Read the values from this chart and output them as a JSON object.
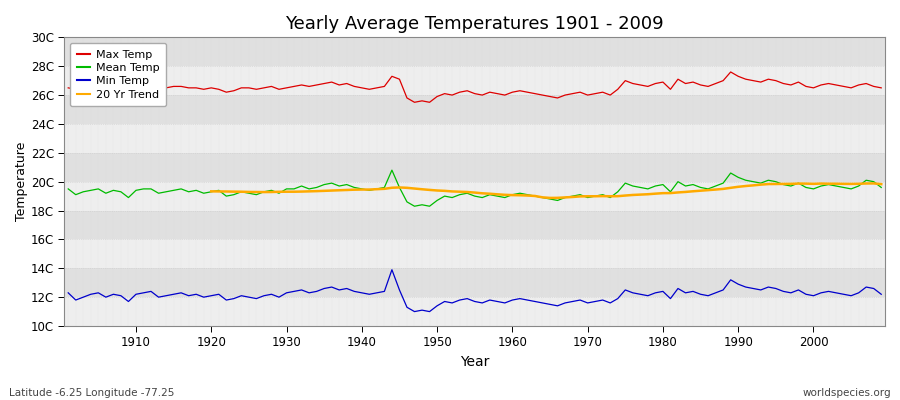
{
  "title": "Yearly Average Temperatures 1901 - 2009",
  "xlabel": "Year",
  "ylabel": "Temperature",
  "lat_lon_label": "Latitude -6.25 Longitude -77.25",
  "source_label": "worldspecies.org",
  "fig_bg_color": "#ffffff",
  "plot_bg_color": "#e8e8e8",
  "band_color_light": "#eeeeee",
  "band_color_dark": "#e0e0e0",
  "grid_color": "#cccccc",
  "ylim": [
    10,
    30
  ],
  "yticks": [
    10,
    12,
    14,
    16,
    18,
    20,
    22,
    24,
    26,
    28,
    30
  ],
  "ytick_labels": [
    "10C",
    "12C",
    "14C",
    "16C",
    "18C",
    "20C",
    "22C",
    "24C",
    "26C",
    "28C",
    "30C"
  ],
  "year_start": 1901,
  "year_end": 2009,
  "colors": {
    "max": "#dd0000",
    "mean": "#00bb00",
    "min": "#0000cc",
    "trend": "#ffaa00"
  },
  "max_temps": [
    26.5,
    26.4,
    26.6,
    26.5,
    26.6,
    26.4,
    26.5,
    26.4,
    25.9,
    26.5,
    26.6,
    26.6,
    26.5,
    26.5,
    26.6,
    26.6,
    26.5,
    26.5,
    26.4,
    26.5,
    26.4,
    26.2,
    26.3,
    26.5,
    26.5,
    26.4,
    26.5,
    26.6,
    26.4,
    26.5,
    26.6,
    26.7,
    26.6,
    26.7,
    26.8,
    26.9,
    26.7,
    26.8,
    26.6,
    26.5,
    26.4,
    26.5,
    26.6,
    27.3,
    27.1,
    25.8,
    25.5,
    25.6,
    25.5,
    25.9,
    26.1,
    26.0,
    26.2,
    26.3,
    26.1,
    26.0,
    26.2,
    26.1,
    26.0,
    26.2,
    26.3,
    26.2,
    26.1,
    26.0,
    25.9,
    25.8,
    26.0,
    26.1,
    26.2,
    26.0,
    26.1,
    26.2,
    26.0,
    26.4,
    27.0,
    26.8,
    26.7,
    26.6,
    26.8,
    26.9,
    26.4,
    27.1,
    26.8,
    26.9,
    26.7,
    26.6,
    26.8,
    27.0,
    27.6,
    27.3,
    27.1,
    27.0,
    26.9,
    27.1,
    27.0,
    26.8,
    26.7,
    26.9,
    26.6,
    26.5,
    26.7,
    26.8,
    26.7,
    26.6,
    26.5,
    26.7,
    26.8,
    26.6,
    26.5
  ],
  "mean_temps": [
    19.5,
    19.1,
    19.3,
    19.4,
    19.5,
    19.2,
    19.4,
    19.3,
    18.9,
    19.4,
    19.5,
    19.5,
    19.2,
    19.3,
    19.4,
    19.5,
    19.3,
    19.4,
    19.2,
    19.3,
    19.4,
    19.0,
    19.1,
    19.3,
    19.2,
    19.1,
    19.3,
    19.4,
    19.2,
    19.5,
    19.5,
    19.7,
    19.5,
    19.6,
    19.8,
    19.9,
    19.7,
    19.8,
    19.6,
    19.5,
    19.4,
    19.5,
    19.6,
    20.8,
    19.6,
    18.6,
    18.3,
    18.4,
    18.3,
    18.7,
    19.0,
    18.9,
    19.1,
    19.2,
    19.0,
    18.9,
    19.1,
    19.0,
    18.9,
    19.1,
    19.2,
    19.1,
    19.0,
    18.9,
    18.8,
    18.7,
    18.9,
    19.0,
    19.1,
    18.9,
    19.0,
    19.1,
    18.9,
    19.3,
    19.9,
    19.7,
    19.6,
    19.5,
    19.7,
    19.8,
    19.3,
    20.0,
    19.7,
    19.8,
    19.6,
    19.5,
    19.7,
    19.9,
    20.6,
    20.3,
    20.1,
    20.0,
    19.9,
    20.1,
    20.0,
    19.8,
    19.7,
    19.9,
    19.6,
    19.5,
    19.7,
    19.8,
    19.7,
    19.6,
    19.5,
    19.7,
    20.1,
    20.0,
    19.6
  ],
  "min_temps": [
    12.3,
    11.8,
    12.0,
    12.2,
    12.3,
    12.0,
    12.2,
    12.1,
    11.7,
    12.2,
    12.3,
    12.4,
    12.0,
    12.1,
    12.2,
    12.3,
    12.1,
    12.2,
    12.0,
    12.1,
    12.2,
    11.8,
    11.9,
    12.1,
    12.0,
    11.9,
    12.1,
    12.2,
    12.0,
    12.3,
    12.4,
    12.5,
    12.3,
    12.4,
    12.6,
    12.7,
    12.5,
    12.6,
    12.4,
    12.3,
    12.2,
    12.3,
    12.4,
    13.9,
    12.5,
    11.3,
    11.0,
    11.1,
    11.0,
    11.4,
    11.7,
    11.6,
    11.8,
    11.9,
    11.7,
    11.6,
    11.8,
    11.7,
    11.6,
    11.8,
    11.9,
    11.8,
    11.7,
    11.6,
    11.5,
    11.4,
    11.6,
    11.7,
    11.8,
    11.6,
    11.7,
    11.8,
    11.6,
    11.9,
    12.5,
    12.3,
    12.2,
    12.1,
    12.3,
    12.4,
    11.9,
    12.6,
    12.3,
    12.4,
    12.2,
    12.1,
    12.3,
    12.5,
    13.2,
    12.9,
    12.7,
    12.6,
    12.5,
    12.7,
    12.6,
    12.4,
    12.3,
    12.5,
    12.2,
    12.1,
    12.3,
    12.4,
    12.3,
    12.2,
    12.1,
    12.3,
    12.7,
    12.6,
    12.2
  ]
}
